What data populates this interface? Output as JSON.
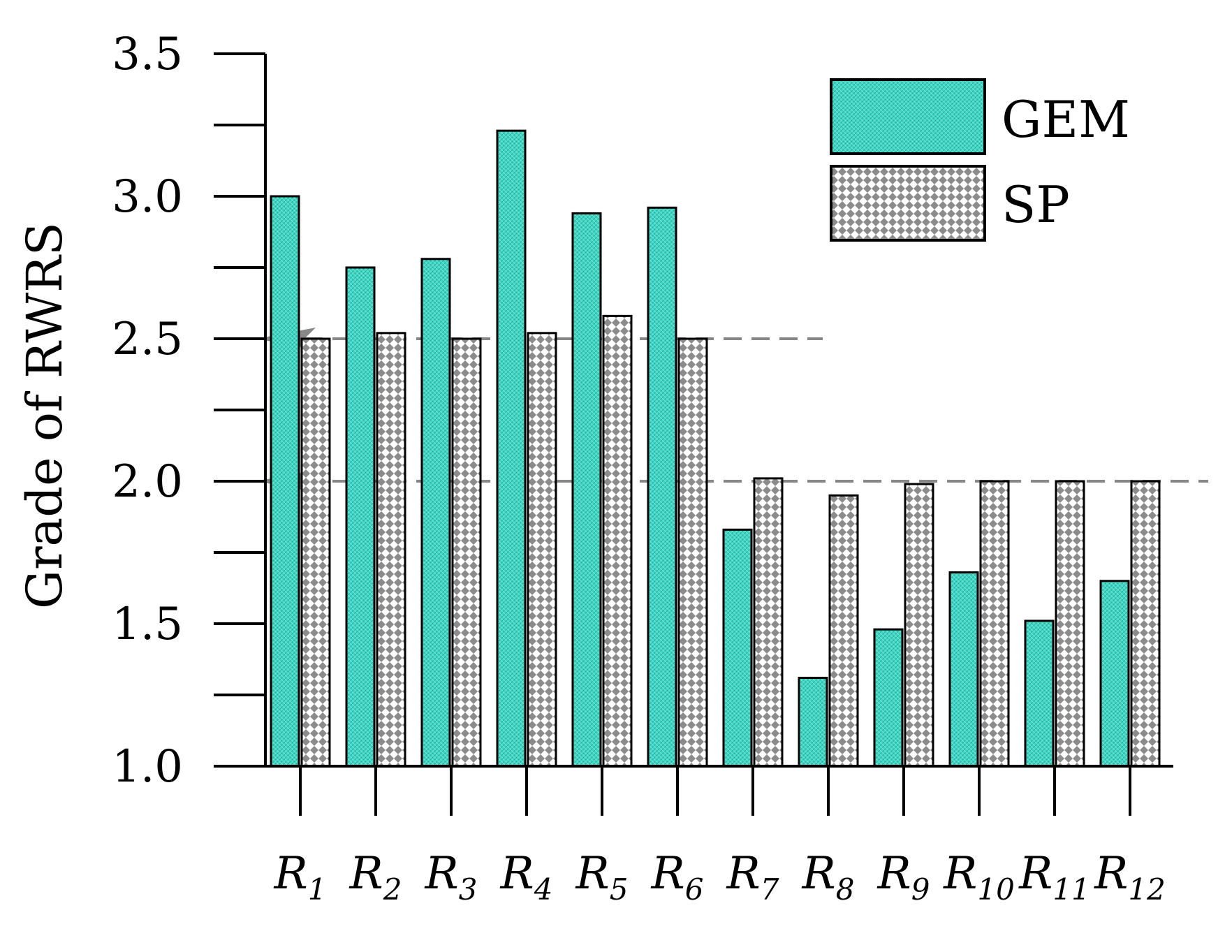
{
  "chart_data": {
    "type": "bar",
    "title": "",
    "xlabel": "",
    "ylabel": "Grade of RWRS",
    "ylim": [
      1.0,
      3.5
    ],
    "yticks": [
      "1.0",
      "1.5",
      "2.0",
      "2.5",
      "3.0",
      "3.5"
    ],
    "categories": [
      {
        "base": "R",
        "sub": "1"
      },
      {
        "base": "R",
        "sub": "2"
      },
      {
        "base": "R",
        "sub": "3"
      },
      {
        "base": "R",
        "sub": "4"
      },
      {
        "base": "R",
        "sub": "5"
      },
      {
        "base": "R",
        "sub": "6"
      },
      {
        "base": "R",
        "sub": "7"
      },
      {
        "base": "R",
        "sub": "8"
      },
      {
        "base": "R",
        "sub": "9"
      },
      {
        "base": "R",
        "sub": "10"
      },
      {
        "base": "R",
        "sub": "11"
      },
      {
        "base": "R",
        "sub": "12"
      }
    ],
    "series": [
      {
        "name": "GEM",
        "color": "#3ed6c4",
        "pattern": "hatch",
        "values": [
          3.0,
          2.75,
          2.78,
          3.23,
          2.94,
          2.96,
          1.83,
          1.31,
          1.48,
          1.68,
          1.51,
          1.65
        ]
      },
      {
        "name": "SP",
        "color": "#8c8c8c",
        "pattern": "dots",
        "values": [
          2.5,
          2.52,
          2.5,
          2.52,
          2.58,
          2.5,
          2.01,
          1.95,
          1.99,
          2.0,
          2.0,
          2.0
        ]
      }
    ],
    "reference_lines": [
      {
        "y": 2.5,
        "style": "dashed",
        "arrow": true
      },
      {
        "y": 2.0,
        "style": "dashed",
        "arrow": true
      }
    ],
    "legend": {
      "position": "top-right"
    },
    "grid": false
  }
}
